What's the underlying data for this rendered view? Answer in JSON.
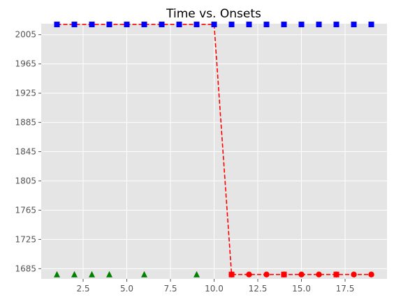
{
  "chart_data": {
    "type": "line",
    "title": "Time vs. Onsets",
    "xlabel": "",
    "ylabel": "",
    "xlim": [
      0.1,
      19.9
    ],
    "ylim": [
      1671,
      2020
    ],
    "x_ticks": [
      2.5,
      5.0,
      7.5,
      10.0,
      12.5,
      15.0,
      17.5
    ],
    "x_tick_labels": [
      "2.5",
      "5.0",
      "7.5",
      "10.0",
      "12.5",
      "15.0",
      "17.5"
    ],
    "y_ticks": [
      1685,
      1725,
      1765,
      1805,
      1845,
      1885,
      1925,
      1965,
      2005
    ],
    "y_tick_labels": [
      "1685",
      "1725",
      "1765",
      "1805",
      "1845",
      "1885",
      "1925",
      "1965",
      "2005"
    ],
    "grid": true,
    "legend": "none",
    "series": [
      {
        "style": "dashed-line",
        "color": "#ff0000",
        "x": [
          1,
          2,
          3,
          4,
          5,
          6,
          7,
          8,
          9,
          10,
          11,
          12,
          13,
          14,
          15,
          16,
          17,
          18,
          19
        ],
        "values": [
          2019,
          2019,
          2019,
          2019,
          2019,
          2019,
          2019,
          2019,
          2019,
          2019,
          1677,
          1677,
          1677,
          1677,
          1677,
          1677,
          1677,
          1677,
          1677
        ]
      },
      {
        "style": "circle-markers",
        "color": "#ff0000",
        "x": [
          11,
          12,
          13,
          14,
          15,
          16,
          17,
          18,
          19
        ],
        "values": [
          1677,
          1677,
          1677,
          1677,
          1677,
          1677,
          1677,
          1677,
          1677
        ]
      },
      {
        "style": "square-markers",
        "color": "#0000ff",
        "x": [
          1,
          2,
          3,
          4,
          5,
          6,
          7,
          8,
          9,
          10,
          11,
          12,
          13,
          14,
          15,
          16,
          17,
          18,
          19
        ],
        "values": [
          2019,
          2019,
          2019,
          2019,
          2019,
          2019,
          2019,
          2019,
          2019,
          2019,
          2019,
          2019,
          2019,
          2019,
          2019,
          2019,
          2019,
          2019,
          2019
        ]
      },
      {
        "style": "square-markers",
        "color": "#ff0000",
        "x": [
          11,
          14,
          17
        ],
        "values": [
          1677,
          1677,
          1677
        ]
      },
      {
        "style": "triangle-markers",
        "color": "#008000",
        "x": [
          1,
          2,
          3,
          4,
          6,
          9
        ],
        "values": [
          1677,
          1677,
          1677,
          1677,
          1677,
          1677
        ]
      }
    ]
  },
  "colors": {
    "axes_background": "#e5e5e5",
    "grid": "#ffffff"
  }
}
